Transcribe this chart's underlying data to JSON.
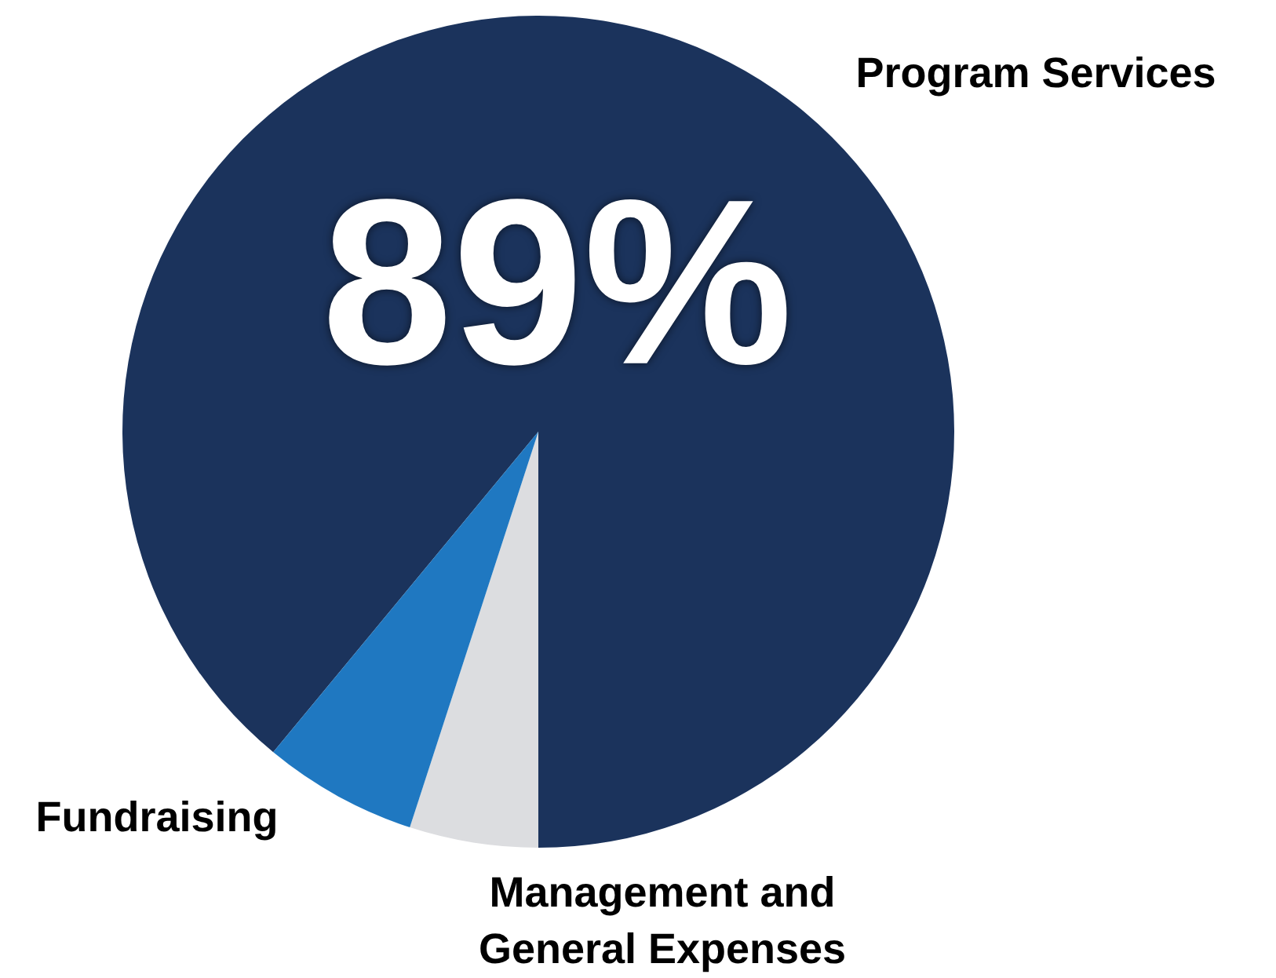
{
  "chart_data": {
    "type": "pie",
    "categories": [
      "Program Services",
      "Management and General Expenses",
      "Fundraising"
    ],
    "values": [
      89,
      5,
      6
    ],
    "colors": [
      "#1b335c",
      "#dcdde0",
      "#1f78c1"
    ],
    "value_labels": [
      "89%",
      null,
      null
    ],
    "legend": false
  }
}
